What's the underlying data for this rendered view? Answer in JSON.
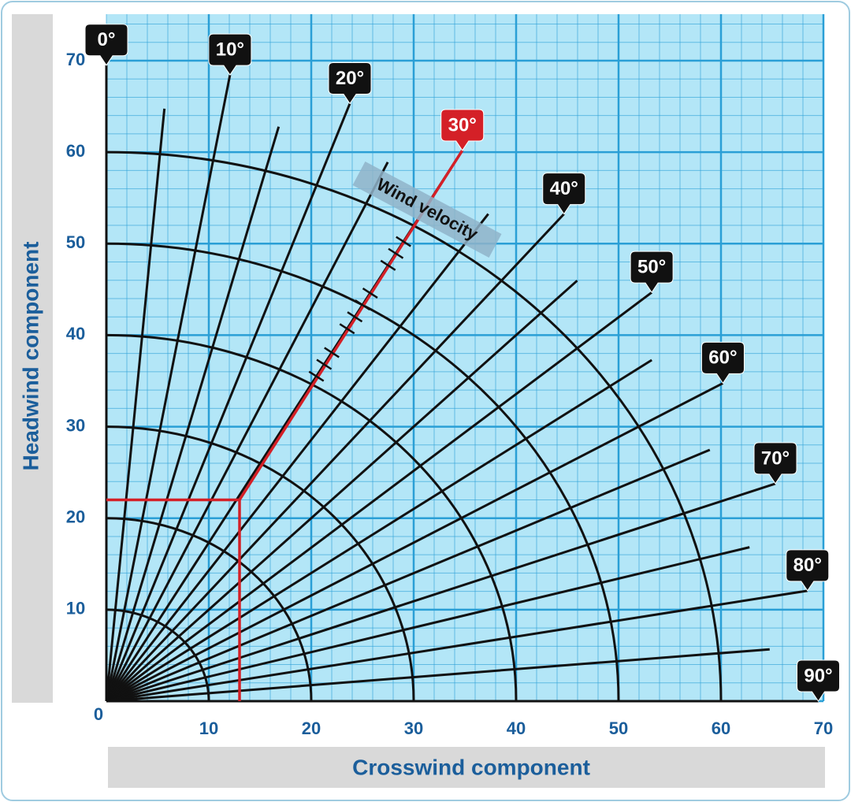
{
  "chart_data": {
    "type": "crosswind",
    "xlabel": "Crosswind component",
    "ylabel": "Headwind component",
    "xlim": [
      0,
      70
    ],
    "ylim": [
      0,
      70
    ],
    "xticks": [
      10,
      20,
      30,
      40,
      50,
      60,
      70
    ],
    "yticks": [
      0,
      10,
      20,
      30,
      40,
      50,
      60,
      70
    ],
    "grid": true,
    "grid_color": "#2a9fd6",
    "background": "#b3e6f7",
    "speed_arcs": [
      10,
      20,
      30,
      40,
      50,
      60
    ],
    "radial_step": 5,
    "angles": [
      {
        "value": 0,
        "label": "0°"
      },
      {
        "value": 10,
        "label": "10°"
      },
      {
        "value": 20,
        "label": "20°"
      },
      {
        "value": 30,
        "label": "30°"
      },
      {
        "value": 40,
        "label": "40°"
      },
      {
        "value": 50,
        "label": "50°"
      },
      {
        "value": 60,
        "label": "60°"
      },
      {
        "value": 70,
        "label": "70°"
      },
      {
        "value": 80,
        "label": "80°"
      },
      {
        "value": 90,
        "label": "90°"
      }
    ],
    "annotation": "Wind velocity",
    "example": {
      "angle": 30,
      "headwind": 22,
      "crosswind": 13,
      "color": "#d42027"
    }
  }
}
